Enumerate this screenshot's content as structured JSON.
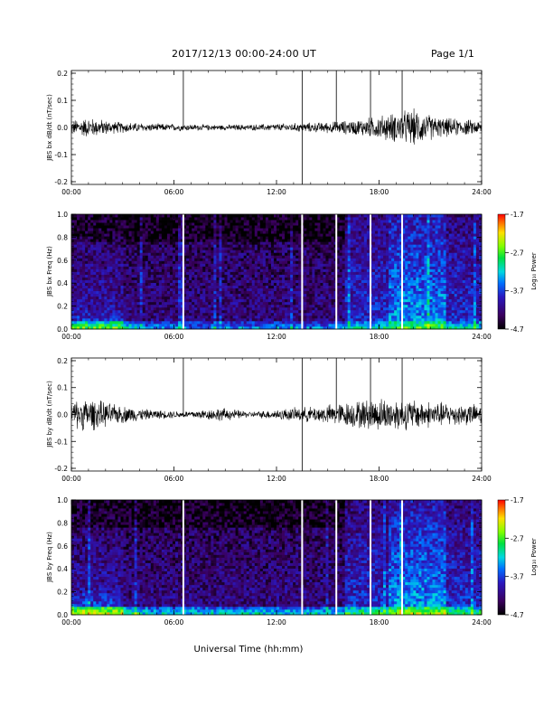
{
  "header": {
    "title": "2017/12/13  00:00-24:00 UT",
    "page": "Page 1/1"
  },
  "xlabel": "Universal Time (hh:mm)",
  "colorbar": {
    "label": "Log₁₀ Power",
    "ticks": [
      "-1.7",
      "-2.7",
      "-3.7",
      "-4.7"
    ],
    "range": [
      -4.7,
      -1.7
    ]
  },
  "chart_data": [
    {
      "type": "line",
      "ylabel": "JBS bx dB/dt (nT/sec)",
      "xlim": [
        0,
        24
      ],
      "ylim": [
        -0.21,
        0.21
      ],
      "x_ticks": [
        "00:00",
        "06:00",
        "12:00",
        "18:00",
        "24:00"
      ],
      "y_ticks": [
        "0.2",
        "0.1",
        "0.0",
        "-0.1",
        "-0.2"
      ],
      "spikes": [
        {
          "t": 6.55,
          "from": 0.0,
          "to": 0.21
        },
        {
          "t": 13.5,
          "from": -0.21,
          "to": 0.21
        },
        {
          "t": 15.5,
          "from": 0.0,
          "to": 0.21
        },
        {
          "t": 17.5,
          "from": 0.0,
          "to": 0.21
        },
        {
          "t": 19.35,
          "from": 0.0,
          "to": 0.21
        }
      ],
      "activity": [
        {
          "t": 0,
          "amp": 0.022
        },
        {
          "t": 1.0,
          "amp": 0.03
        },
        {
          "t": 2.5,
          "amp": 0.018
        },
        {
          "t": 4.5,
          "amp": 0.012
        },
        {
          "t": 6.5,
          "amp": 0.01
        },
        {
          "t": 8.5,
          "amp": 0.008
        },
        {
          "t": 10.5,
          "amp": 0.009
        },
        {
          "t": 12.5,
          "amp": 0.012
        },
        {
          "t": 14.5,
          "amp": 0.015
        },
        {
          "t": 16.5,
          "amp": 0.022
        },
        {
          "t": 18.0,
          "amp": 0.035
        },
        {
          "t": 20.0,
          "amp": 0.055
        },
        {
          "t": 21.5,
          "amp": 0.03
        },
        {
          "t": 24,
          "amp": 0.02
        }
      ]
    },
    {
      "type": "heatmap",
      "ylabel": "JBS bx Freq (Hz)",
      "xlim": [
        0,
        24
      ],
      "ylim": [
        0.0,
        1.0
      ],
      "x_ticks": [
        "00:00",
        "06:00",
        "12:00",
        "18:00",
        "24:00"
      ],
      "y_ticks": [
        "1.0",
        "0.8",
        "0.6",
        "0.4",
        "0.2",
        "0.0"
      ],
      "gaps": [
        6.55,
        13.5,
        15.5,
        17.5,
        19.35
      ],
      "z_range": [
        -4.7,
        -1.7
      ]
    },
    {
      "type": "line",
      "ylabel": "JBS by dB/dt (nT/sec)",
      "xlim": [
        0,
        24
      ],
      "ylim": [
        -0.21,
        0.21
      ],
      "x_ticks": [
        "00:00",
        "06:00",
        "12:00",
        "18:00",
        "24:00"
      ],
      "y_ticks": [
        "0.2",
        "0.1",
        "0.0",
        "-0.1",
        "-0.2"
      ],
      "spikes": [
        {
          "t": 6.55,
          "from": 0.0,
          "to": 0.21
        },
        {
          "t": 13.5,
          "from": -0.21,
          "to": 0.21
        },
        {
          "t": 15.5,
          "from": 0.0,
          "to": 0.21
        },
        {
          "t": 17.5,
          "from": 0.0,
          "to": 0.21
        },
        {
          "t": 19.35,
          "from": 0.0,
          "to": 0.21
        }
      ],
      "activity": [
        {
          "t": 0,
          "amp": 0.04
        },
        {
          "t": 1.0,
          "amp": 0.05
        },
        {
          "t": 2.5,
          "amp": 0.03
        },
        {
          "t": 4.5,
          "amp": 0.015
        },
        {
          "t": 6.5,
          "amp": 0.01
        },
        {
          "t": 8.8,
          "amp": 0.02
        },
        {
          "t": 10.5,
          "amp": 0.008
        },
        {
          "t": 12.5,
          "amp": 0.018
        },
        {
          "t": 14.5,
          "amp": 0.025
        },
        {
          "t": 16.5,
          "amp": 0.04
        },
        {
          "t": 18.0,
          "amp": 0.05
        },
        {
          "t": 20.0,
          "amp": 0.045
        },
        {
          "t": 22.0,
          "amp": 0.035
        },
        {
          "t": 24,
          "amp": 0.03
        }
      ]
    },
    {
      "type": "heatmap",
      "ylabel": "JBS by Freq (Hz)",
      "xlim": [
        0,
        24
      ],
      "ylim": [
        0.0,
        1.0
      ],
      "x_ticks": [
        "00:00",
        "06:00",
        "12:00",
        "18:00",
        "24:00"
      ],
      "y_ticks": [
        "1.0",
        "0.8",
        "0.6",
        "0.4",
        "0.2",
        "0.0"
      ],
      "gaps": [
        6.55,
        13.5,
        15.5,
        17.5,
        19.35
      ],
      "z_range": [
        -4.7,
        -1.7
      ]
    }
  ]
}
